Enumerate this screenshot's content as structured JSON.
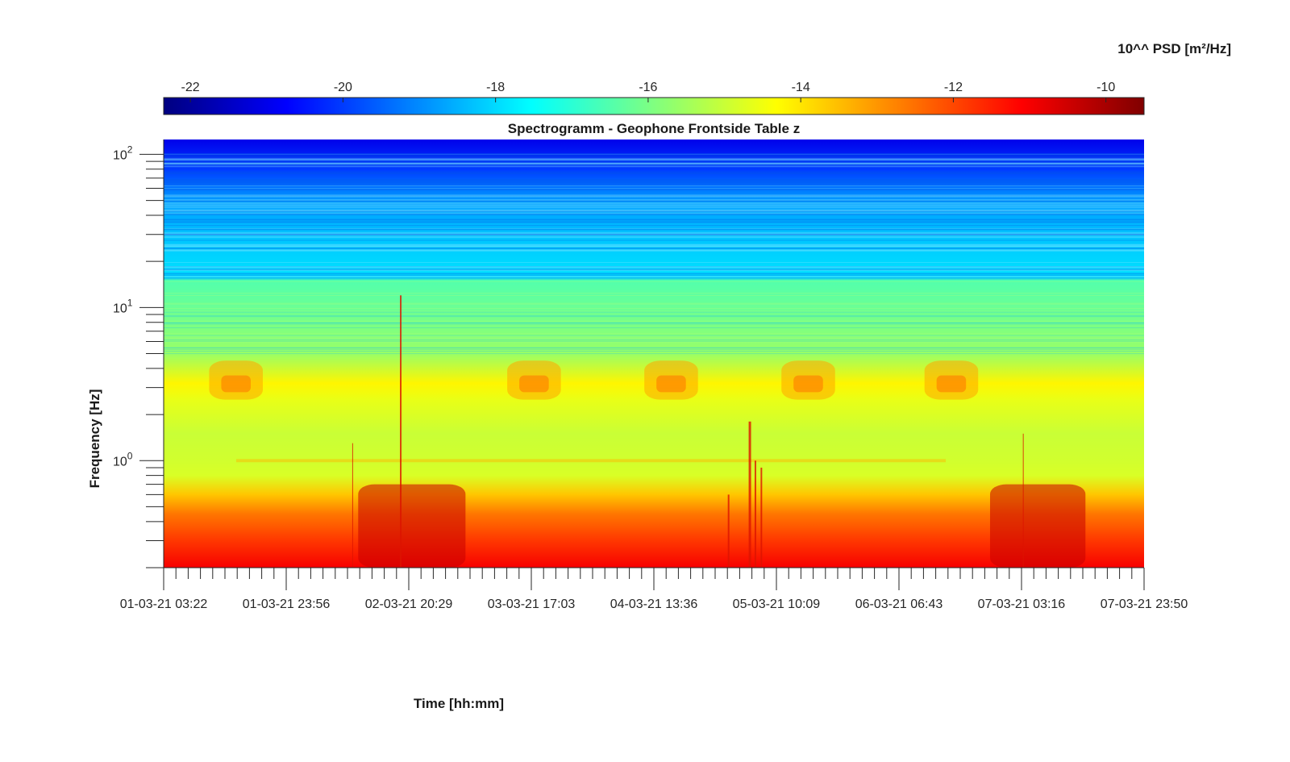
{
  "chart_data": {
    "type": "heatmap",
    "title": "Spectrogramm - Geophone Frontside Table z",
    "xlabel": "Time [hh:mm]",
    "ylabel": "Frequency [Hz]",
    "colorbar": {
      "label": "10^^ PSD [m²/Hz]",
      "colormap": "jet",
      "range": [
        -22.35,
        -9.5
      ],
      "ticks": [
        -22,
        -20,
        -18,
        -16,
        -14,
        -12,
        -10
      ],
      "tick_labels": [
        "-22",
        "-20",
        "-18",
        "-16",
        "-14",
        "-12",
        "-10"
      ]
    },
    "x": {
      "range": [
        "01-03-21 03:22",
        "07-03-21 23:50"
      ],
      "tick_labels": [
        "01-03-21 03:22",
        "01-03-21 23:56",
        "02-03-21 20:29",
        "03-03-21 17:03",
        "04-03-21 13:36",
        "05-03-21 10:09",
        "06-03-21 06:43",
        "07-03-21 03:16",
        "07-03-21 23:50"
      ],
      "minor_ticks_between_labels": 9
    },
    "y": {
      "scale": "log",
      "range": [
        0.2,
        125
      ],
      "tick_values": [
        1,
        10,
        100
      ],
      "tick_labels": [
        {
          "base": "10",
          "exp": "0"
        },
        {
          "base": "10",
          "exp": "1"
        },
        {
          "base": "10",
          "exp": "2"
        }
      ]
    },
    "description_of_values": "log10 PSD in m²/Hz versus time and frequency",
    "frequency_profile": [
      {
        "f": 0.2,
        "psd": -11.0
      },
      {
        "f": 0.3,
        "psd": -11.8
      },
      {
        "f": 0.45,
        "psd": -12.6
      },
      {
        "f": 0.6,
        "psd": -13.6
      },
      {
        "f": 0.8,
        "psd": -14.8
      },
      {
        "f": 1.0,
        "psd": -14.9
      },
      {
        "f": 1.5,
        "psd": -15.0
      },
      {
        "f": 2.5,
        "psd": -14.6
      },
      {
        "f": 3.2,
        "psd": -14.2
      },
      {
        "f": 5.0,
        "psd": -15.6
      },
      {
        "f": 10.0,
        "psd": -16.2
      },
      {
        "f": 15.0,
        "psd": -16.5
      },
      {
        "f": 16.0,
        "psd": -17.9
      },
      {
        "f": 30.0,
        "psd": -18.3
      },
      {
        "f": 50.0,
        "psd": -18.8
      },
      {
        "f": 80.0,
        "psd": -20.0
      },
      {
        "f": 125.0,
        "psd": -21.0
      }
    ],
    "high_activity_periods": [
      {
        "start": "01-03-21 11:00",
        "end": "01-03-21 20:00",
        "band_hz": [
          2.5,
          4.5
        ]
      },
      {
        "start": "02-03-21 12:00",
        "end": "03-03-21 06:00",
        "band_hz": [
          0.2,
          0.7
        ]
      },
      {
        "start": "03-03-21 13:00",
        "end": "03-03-21 22:00",
        "band_hz": [
          2.5,
          4.5
        ]
      },
      {
        "start": "04-03-21 12:00",
        "end": "04-03-21 21:00",
        "band_hz": [
          2.5,
          4.5
        ]
      },
      {
        "start": "05-03-21 11:00",
        "end": "05-03-21 20:00",
        "band_hz": [
          2.5,
          4.5
        ]
      },
      {
        "start": "06-03-21 11:00",
        "end": "06-03-21 20:00",
        "band_hz": [
          2.5,
          4.5
        ]
      },
      {
        "start": "06-03-21 22:00",
        "end": "07-03-21 14:00",
        "band_hz": [
          0.2,
          0.7
        ]
      }
    ]
  }
}
